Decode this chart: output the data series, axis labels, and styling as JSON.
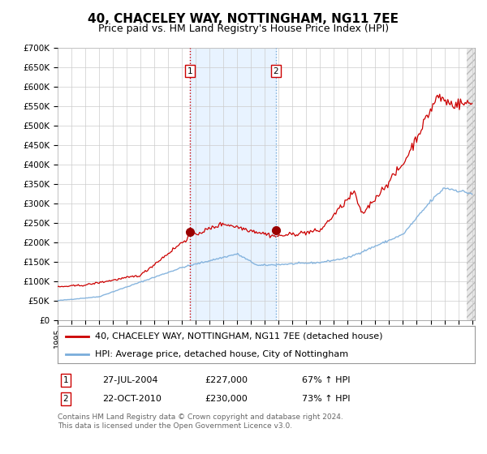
{
  "title": "40, CHACELEY WAY, NOTTINGHAM, NG11 7EE",
  "subtitle": "Price paid vs. HM Land Registry's House Price Index (HPI)",
  "legend_line1": "40, CHACELEY WAY, NOTTINGHAM, NG11 7EE (detached house)",
  "legend_line2": "HPI: Average price, detached house, City of Nottingham",
  "footnote_line1": "Contains HM Land Registry data © Crown copyright and database right 2024.",
  "footnote_line2": "This data is licensed under the Open Government Licence v3.0.",
  "transaction1_label": "1",
  "transaction1_date": "27-JUL-2004",
  "transaction1_price": "£227,000",
  "transaction1_hpi": "67% ↑ HPI",
  "transaction2_label": "2",
  "transaction2_date": "22-OCT-2010",
  "transaction2_price": "£230,000",
  "transaction2_hpi": "73% ↑ HPI",
  "year_start": 1995,
  "year_end": 2025,
  "ylim_min": 0,
  "ylim_max": 700000,
  "ytick_step": 50000,
  "hpi_color": "#7aaddb",
  "price_color": "#cc0000",
  "grid_color": "#cccccc",
  "bg_color": "#ffffff",
  "plot_bg_color": "#ffffff",
  "shade_color": "#ddeeff",
  "vline1_color": "#cc0000",
  "vline2_color": "#7aaddb",
  "marker_color": "#990000",
  "transaction1_x": 2004.57,
  "transaction2_x": 2010.8,
  "title_fontsize": 11,
  "subtitle_fontsize": 9,
  "tick_fontsize": 7.5,
  "legend_fontsize": 8,
  "annot_fontsize": 8,
  "footnote_fontsize": 6.5
}
